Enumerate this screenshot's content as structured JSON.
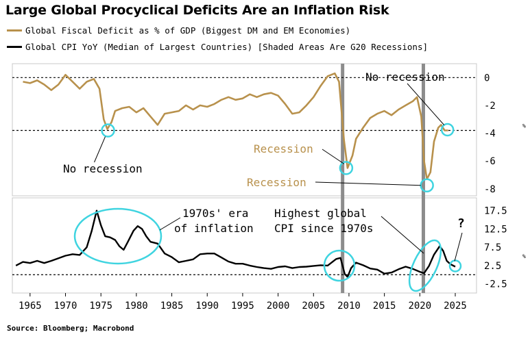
{
  "title": "Large Global Procyclical Deficits Are an Inflation Risk",
  "legend": [
    {
      "label": "Global Fiscal Deficit as % of GDP (Biggest DM and EM Economies)",
      "color": "#b8914c"
    },
    {
      "label": "Global CPI YoY (Median of Largest Countries) [Shaded Areas Are G20 Recessions]",
      "color": "#000000"
    }
  ],
  "source": "Source: Bloomberg; Macrobond",
  "chart_data": {
    "type": "line",
    "x_ticks": [
      1965,
      1970,
      1975,
      1980,
      1985,
      1990,
      1995,
      2000,
      2005,
      2010,
      2015,
      2020,
      2025
    ],
    "xlim": [
      1962.5,
      2028
    ],
    "recessions": [
      2009.1,
      2020.5
    ],
    "panels": [
      {
        "name": "Global Fiscal Deficit as % of GDP",
        "ylim": [
          -8.5,
          1.0
        ],
        "y_ticks": [
          0,
          -2,
          -4,
          -6,
          -8
        ],
        "y_unit": "%",
        "dashed_lines": [
          0,
          -3.8
        ],
        "color": "#b8914c",
        "series": [
          [
            1964.0,
            -0.3
          ],
          [
            1965.0,
            -0.4
          ],
          [
            1966.0,
            -0.2
          ],
          [
            1967.0,
            -0.5
          ],
          [
            1968.0,
            -0.9
          ],
          [
            1969.0,
            -0.5
          ],
          [
            1970.0,
            0.2
          ],
          [
            1971.0,
            -0.3
          ],
          [
            1972.0,
            -0.8
          ],
          [
            1973.0,
            -0.3
          ],
          [
            1974.0,
            -0.1
          ],
          [
            1974.8,
            -0.8
          ],
          [
            1975.4,
            -3.0
          ],
          [
            1975.9,
            -3.7
          ],
          [
            1976.5,
            -3.2
          ],
          [
            1977.0,
            -2.4
          ],
          [
            1978.0,
            -2.2
          ],
          [
            1979.0,
            -2.1
          ],
          [
            1980.0,
            -2.5
          ],
          [
            1981.0,
            -2.2
          ],
          [
            1982.0,
            -2.8
          ],
          [
            1983.0,
            -3.4
          ],
          [
            1984.0,
            -2.6
          ],
          [
            1985.0,
            -2.5
          ],
          [
            1986.0,
            -2.4
          ],
          [
            1987.0,
            -2.0
          ],
          [
            1988.0,
            -2.3
          ],
          [
            1989.0,
            -2.0
          ],
          [
            1990.0,
            -2.1
          ],
          [
            1991.0,
            -1.9
          ],
          [
            1992.0,
            -1.6
          ],
          [
            1993.0,
            -1.4
          ],
          [
            1994.0,
            -1.6
          ],
          [
            1995.0,
            -1.5
          ],
          [
            1996.0,
            -1.2
          ],
          [
            1997.0,
            -1.4
          ],
          [
            1998.0,
            -1.2
          ],
          [
            1999.0,
            -1.1
          ],
          [
            2000.0,
            -1.3
          ],
          [
            2001.0,
            -1.9
          ],
          [
            2002.0,
            -2.6
          ],
          [
            2003.0,
            -2.5
          ],
          [
            2004.0,
            -2.0
          ],
          [
            2005.0,
            -1.4
          ],
          [
            2006.0,
            -0.6
          ],
          [
            2007.0,
            0.1
          ],
          [
            2008.0,
            0.3
          ],
          [
            2008.6,
            -0.3
          ],
          [
            2009.3,
            -4.5
          ],
          [
            2009.8,
            -6.5
          ],
          [
            2010.5,
            -5.6
          ],
          [
            2011.0,
            -4.4
          ],
          [
            2012.0,
            -3.6
          ],
          [
            2013.0,
            -2.9
          ],
          [
            2014.0,
            -2.6
          ],
          [
            2015.0,
            -2.4
          ],
          [
            2016.0,
            -2.7
          ],
          [
            2017.0,
            -2.3
          ],
          [
            2018.0,
            -2.0
          ],
          [
            2019.0,
            -1.7
          ],
          [
            2019.6,
            -1.4
          ],
          [
            2020.2,
            -2.8
          ],
          [
            2020.6,
            -6.0
          ],
          [
            2021.0,
            -7.3
          ],
          [
            2021.5,
            -6.8
          ],
          [
            2022.0,
            -4.6
          ],
          [
            2022.6,
            -3.6
          ],
          [
            2023.0,
            -3.4
          ],
          [
            2023.5,
            -3.8
          ],
          [
            2024.0,
            -3.8
          ]
        ],
        "annotations": [
          {
            "text": "No recession",
            "x": 1976.0,
            "y": -3.8
          },
          {
            "text": "Recession",
            "x": 2009.8,
            "y": -6.5
          },
          {
            "text": "Recession",
            "x": 2021.0,
            "y": -7.6
          },
          {
            "text": "No recession",
            "x": 2024.0,
            "y": -3.8
          }
        ]
      },
      {
        "name": "Global CPI YoY",
        "ylim": [
          -5.0,
          21.0
        ],
        "y_ticks": [
          17.5,
          12.5,
          7.5,
          2.5,
          -2.5
        ],
        "y_unit": "%",
        "dashed_lines": [
          0
        ],
        "color": "#000000",
        "series": [
          [
            1963.0,
            2.5
          ],
          [
            1964.0,
            3.5
          ],
          [
            1965.0,
            3.2
          ],
          [
            1966.0,
            3.8
          ],
          [
            1967.0,
            3.2
          ],
          [
            1968.0,
            3.8
          ],
          [
            1969.0,
            4.5
          ],
          [
            1970.0,
            5.2
          ],
          [
            1971.0,
            5.6
          ],
          [
            1972.0,
            5.4
          ],
          [
            1973.0,
            7.5
          ],
          [
            1973.7,
            12.0
          ],
          [
            1974.4,
            17.5
          ],
          [
            1975.0,
            13.5
          ],
          [
            1975.6,
            10.5
          ],
          [
            1976.3,
            10.2
          ],
          [
            1977.0,
            9.5
          ],
          [
            1977.6,
            7.8
          ],
          [
            1978.2,
            6.8
          ],
          [
            1978.8,
            9.0
          ],
          [
            1979.6,
            12.0
          ],
          [
            1980.2,
            13.3
          ],
          [
            1980.8,
            12.5
          ],
          [
            1981.4,
            10.5
          ],
          [
            1982.0,
            9.0
          ],
          [
            1983.0,
            8.5
          ],
          [
            1984.0,
            5.8
          ],
          [
            1985.0,
            4.8
          ],
          [
            1986.0,
            3.4
          ],
          [
            1987.0,
            3.8
          ],
          [
            1988.0,
            4.2
          ],
          [
            1989.0,
            5.6
          ],
          [
            1990.0,
            5.8
          ],
          [
            1991.0,
            5.8
          ],
          [
            1992.0,
            4.7
          ],
          [
            1993.0,
            3.6
          ],
          [
            1994.0,
            3.0
          ],
          [
            1995.0,
            3.0
          ],
          [
            1996.0,
            2.5
          ],
          [
            1997.0,
            2.1
          ],
          [
            1998.0,
            1.8
          ],
          [
            1999.0,
            1.6
          ],
          [
            2000.0,
            2.1
          ],
          [
            2001.0,
            2.3
          ],
          [
            2002.0,
            1.8
          ],
          [
            2003.0,
            2.1
          ],
          [
            2004.0,
            2.2
          ],
          [
            2005.0,
            2.4
          ],
          [
            2006.0,
            2.6
          ],
          [
            2007.0,
            2.5
          ],
          [
            2008.2,
            4.3
          ],
          [
            2008.8,
            4.6
          ],
          [
            2009.4,
            0.2
          ],
          [
            2009.8,
            -0.6
          ],
          [
            2010.3,
            1.8
          ],
          [
            2011.0,
            3.3
          ],
          [
            2012.0,
            2.6
          ],
          [
            2013.0,
            1.7
          ],
          [
            2014.0,
            1.4
          ],
          [
            2015.0,
            0.3
          ],
          [
            2016.0,
            0.6
          ],
          [
            2017.0,
            1.5
          ],
          [
            2018.0,
            2.2
          ],
          [
            2019.0,
            1.6
          ],
          [
            2020.0,
            0.8
          ],
          [
            2020.6,
            0.4
          ],
          [
            2021.3,
            2.4
          ],
          [
            2022.0,
            5.5
          ],
          [
            2022.8,
            7.8
          ],
          [
            2023.3,
            6.5
          ],
          [
            2023.8,
            3.8
          ],
          [
            2024.3,
            2.9
          ],
          [
            2025.0,
            2.2
          ]
        ],
        "annotations": [
          {
            "text": "1970s' era of inflation",
            "x": 1977.0,
            "y": 12.0
          },
          {
            "text": "Highest global CPI since 1970s",
            "x": 2022.8,
            "y": 7.8
          },
          {
            "text": "?",
            "x": 2025.0,
            "y": 2.2
          }
        ]
      }
    ]
  }
}
